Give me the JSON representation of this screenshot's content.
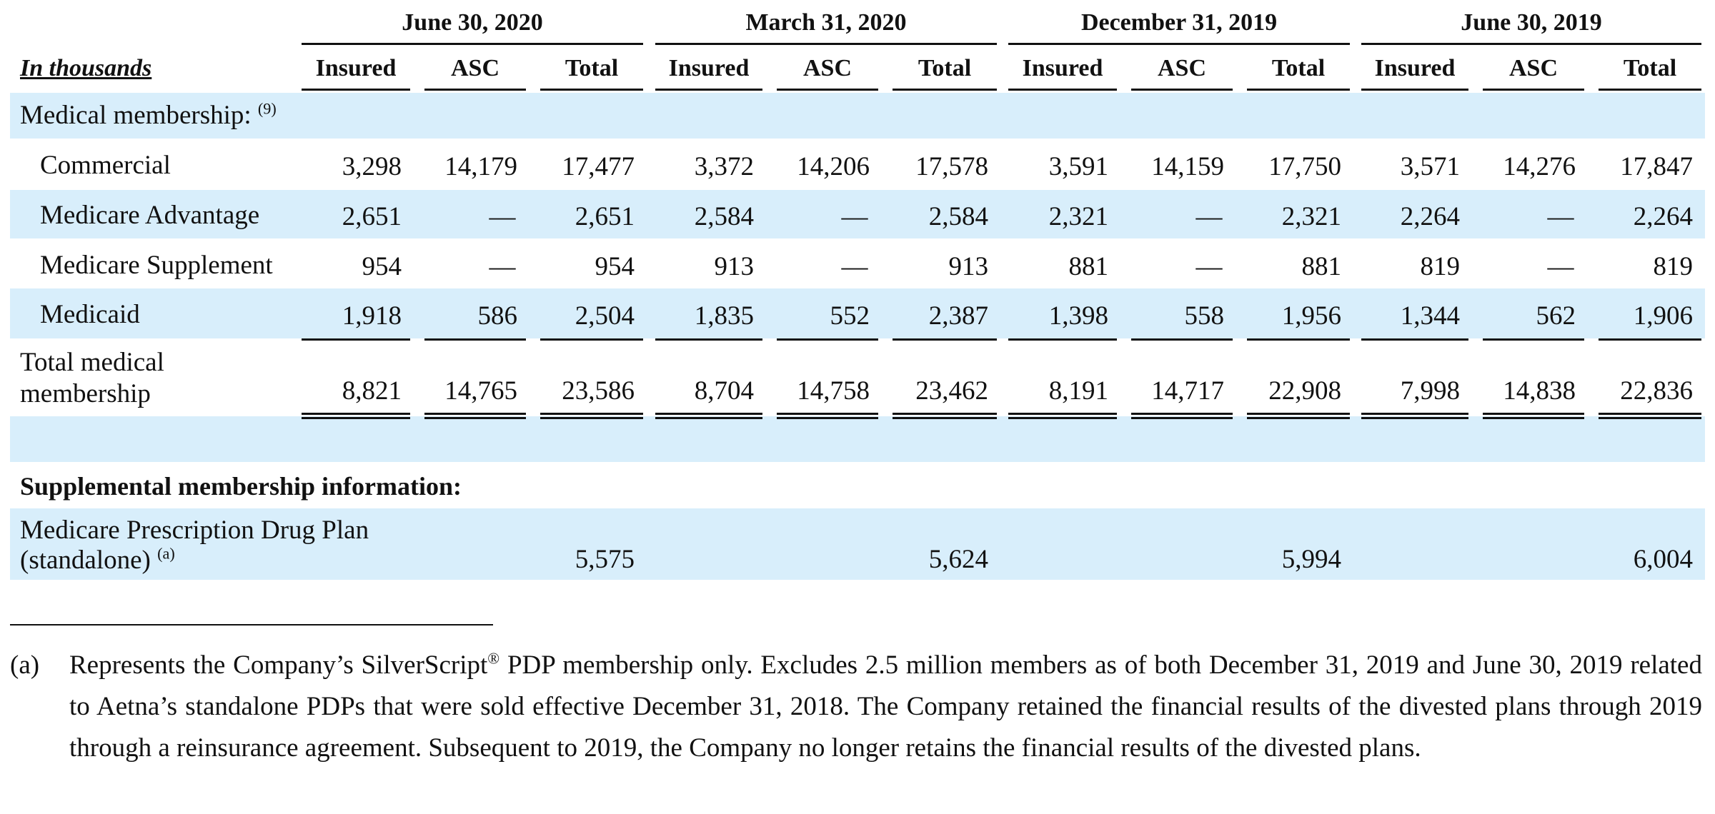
{
  "table": {
    "unit_label": "In thousands",
    "periods": [
      "June 30, 2020",
      "March 31, 2020",
      "December 31, 2019",
      "June 30, 2019"
    ],
    "subheaders": [
      "Insured",
      "ASC",
      "Total"
    ],
    "section_medical": "Medical membership:",
    "section_medical_note": "(9)",
    "rows": [
      {
        "label": "Commercial",
        "values": [
          "3,298",
          "14,179",
          "17,477",
          "3,372",
          "14,206",
          "17,578",
          "3,591",
          "14,159",
          "17,750",
          "3,571",
          "14,276",
          "17,847"
        ]
      },
      {
        "label": "Medicare Advantage",
        "values": [
          "2,651",
          "—",
          "2,651",
          "2,584",
          "—",
          "2,584",
          "2,321",
          "—",
          "2,321",
          "2,264",
          "—",
          "2,264"
        ]
      },
      {
        "label": "Medicare Supplement",
        "values": [
          "954",
          "—",
          "954",
          "913",
          "—",
          "913",
          "881",
          "—",
          "881",
          "819",
          "—",
          "819"
        ]
      },
      {
        "label": "Medicaid",
        "values": [
          "1,918",
          "586",
          "2,504",
          "1,835",
          "552",
          "2,387",
          "1,398",
          "558",
          "1,956",
          "1,344",
          "562",
          "1,906"
        ]
      }
    ],
    "total_row": {
      "label_line1": "Total medical",
      "label_line2": "membership",
      "values": [
        "8,821",
        "14,765",
        "23,586",
        "8,704",
        "14,758",
        "23,462",
        "8,191",
        "14,717",
        "22,908",
        "7,998",
        "14,838",
        "22,836"
      ]
    },
    "supplemental_heading": "Supplemental membership information:",
    "pdp_row": {
      "label_line1": "Medicare Prescription Drug Plan",
      "label_line2": "(standalone)",
      "label_note": "(a)",
      "totals": [
        "5,575",
        "5,624",
        "5,994",
        "6,004"
      ]
    }
  },
  "footnote": {
    "marker": "(a)",
    "text_part1": "Represents the Company’s SilverScript",
    "registered": "®",
    "text_part2": " PDP membership only. Excludes 2.5 million members as of both December 31, 2019 and June 30, 2019 related to Aetna’s standalone PDPs that were sold effective December 31, 2018. The Company retained the financial results of the divested plans through 2019 through a reinsurance agreement. Subsequent to 2019, the Company no longer retains the financial results of the divested plans."
  }
}
